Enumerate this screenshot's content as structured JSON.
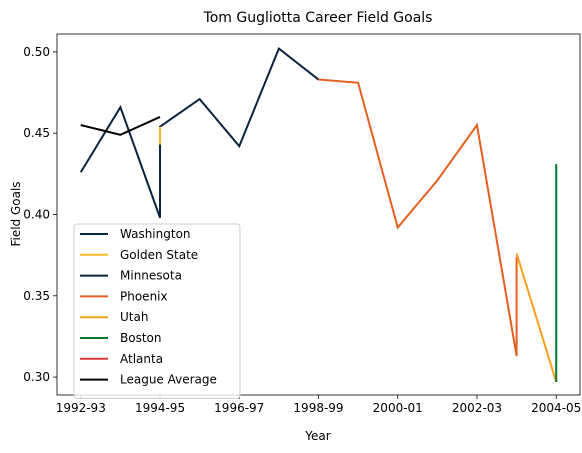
{
  "chart_data": {
    "type": "line",
    "title": "Tom Gugliotta Career Field Goals",
    "xlabel": "Year",
    "ylabel": "Field Goals",
    "x_ticks": [
      "1992-93",
      "1994-95",
      "1996-97",
      "1998-99",
      "2000-01",
      "2002-03",
      "2004-05"
    ],
    "y_ticks": [
      "0.30",
      "0.35",
      "0.40",
      "0.45",
      "0.50"
    ],
    "xlim": [
      "1992-93",
      "2004-05"
    ],
    "ylim": [
      0.289,
      0.511
    ],
    "grid": false,
    "legend_position": "lower-left",
    "series": [
      {
        "name": "Washington",
        "color": "#0c2340",
        "points": [
          [
            "1992-93",
            0.426
          ],
          [
            "1993-94",
            0.466
          ],
          [
            "1994-95",
            0.398
          ],
          [
            "1994-95",
            0.454
          ],
          [
            "1995-96",
            0.471
          ],
          [
            "1996-97",
            0.442
          ],
          [
            "1997-98",
            0.502
          ],
          [
            "1998-99",
            0.483
          ]
        ]
      },
      {
        "name": "Golden State",
        "color": "#fdb927",
        "points": [
          [
            "1994-95",
            0.443
          ],
          [
            "1994-95",
            0.454
          ]
        ]
      },
      {
        "name": "Minnesota",
        "color": "#0c2340",
        "points": []
      },
      {
        "name": "Phoenix",
        "color": "#e56020",
        "points": [
          [
            "1998-99",
            0.483
          ],
          [
            "1999-00",
            0.481
          ],
          [
            "2000-01",
            0.392
          ],
          [
            "2001-02",
            0.421
          ],
          [
            "2002-03",
            0.455
          ],
          [
            "2003-04",
            0.313
          ],
          [
            "2003-04",
            0.374
          ]
        ]
      },
      {
        "name": "Utah",
        "color": "#f9a01b",
        "points": [
          [
            "2003-04",
            0.376
          ],
          [
            "2004-05",
            0.297
          ]
        ]
      },
      {
        "name": "Boston",
        "color": "#007a33",
        "points": [
          [
            "2004-05",
            0.297
          ],
          [
            "2004-05",
            0.431
          ]
        ]
      },
      {
        "name": "Atlanta",
        "color": "#e03a3e",
        "points": []
      },
      {
        "name": "League Average",
        "color": "#000000",
        "points": [
          [
            "1992-93",
            0.455
          ],
          [
            "1993-94",
            0.449
          ],
          [
            "1994-95",
            0.46
          ]
        ]
      }
    ]
  }
}
